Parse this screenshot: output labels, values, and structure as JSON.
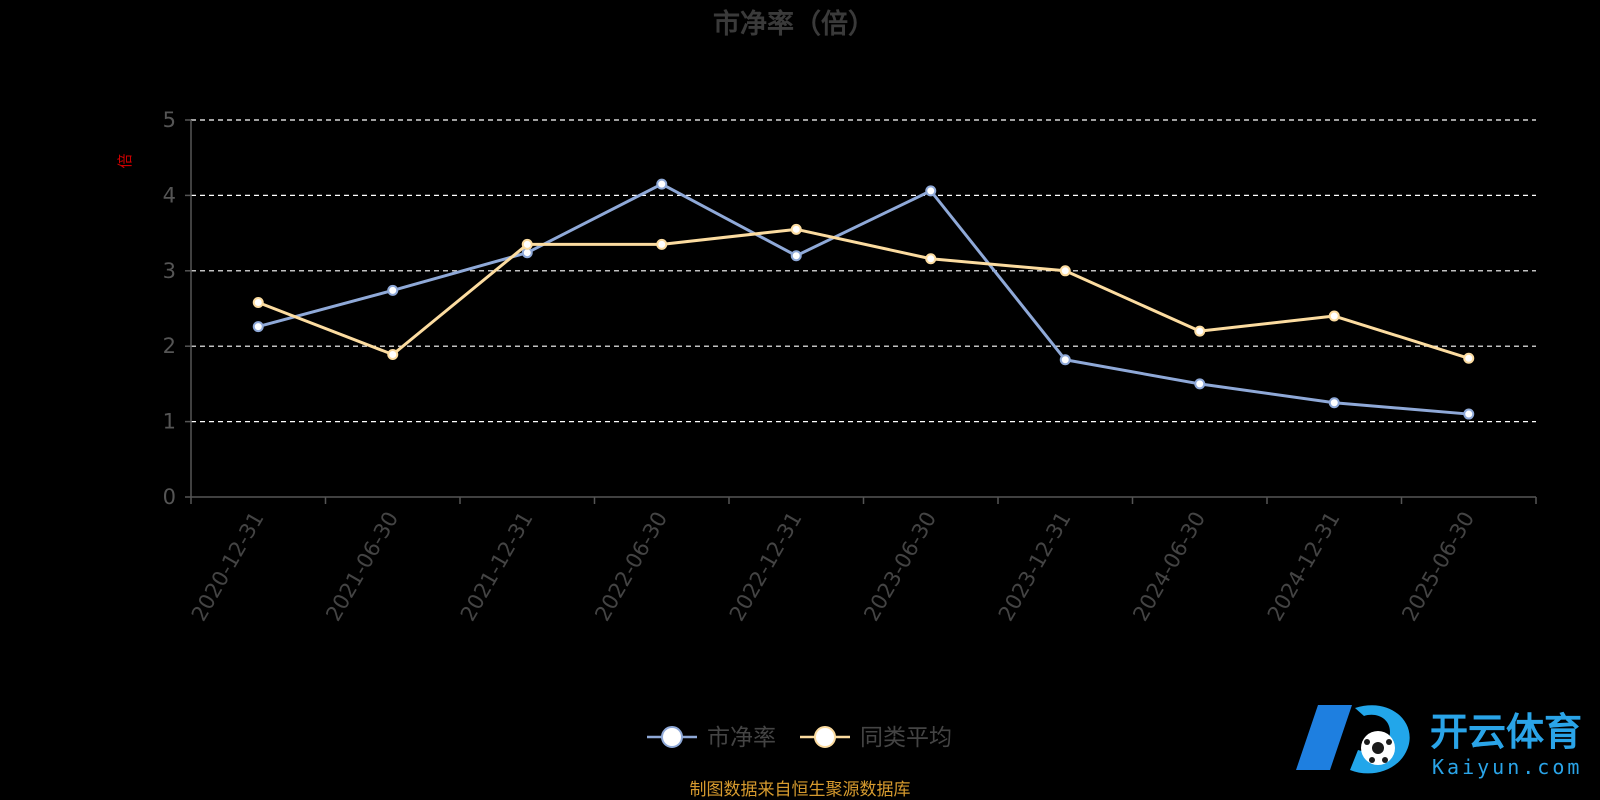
{
  "chart_data": {
    "type": "line",
    "title": "市净率（倍）",
    "ylabel": "倍",
    "ylim": [
      0,
      5
    ],
    "yticks": [
      0,
      1,
      2,
      3,
      4,
      5
    ],
    "grid": true,
    "legend_position": "bottom",
    "categories": [
      "2020-12-31",
      "2021-06-30",
      "2021-12-31",
      "2022-06-30",
      "2022-12-31",
      "2023-06-30",
      "2023-12-31",
      "2024-06-30",
      "2024-12-31",
      "2025-06-30"
    ],
    "series": [
      {
        "name": "市净率",
        "color": "#8fa9d8",
        "values": [
          2.26,
          2.74,
          3.24,
          4.15,
          3.2,
          4.06,
          1.82,
          1.5,
          1.25,
          1.1
        ]
      },
      {
        "name": "同类平均",
        "color": "#fcdca0",
        "values": [
          2.58,
          1.89,
          3.35,
          3.35,
          3.55,
          3.16,
          3.0,
          2.2,
          2.4,
          1.84
        ]
      }
    ],
    "source": "制图数据来自恒生聚源数据库"
  },
  "watermark": {
    "cn": "开云体育",
    "en": "Kaiyun.com",
    "color": "#2aa4e8"
  },
  "colors": {
    "unit": "#cc0000",
    "source": "#d69a2e",
    "grid": "#ffffff",
    "axis": "#555555"
  }
}
